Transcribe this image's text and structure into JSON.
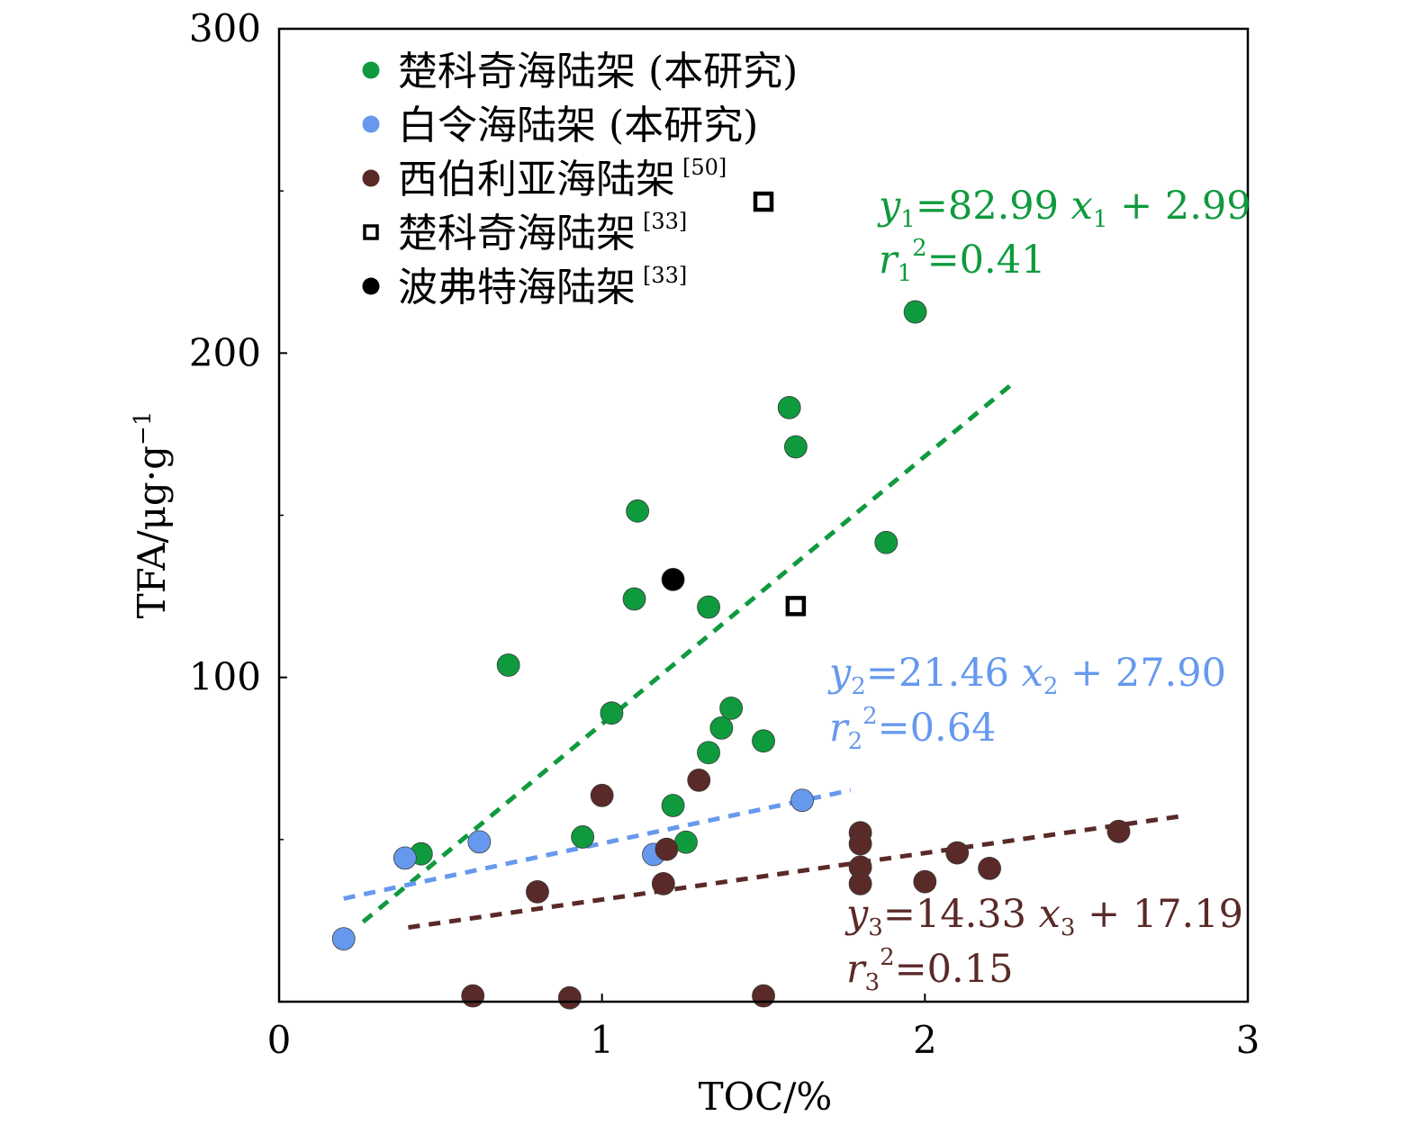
{
  "chart_data": {
    "type": "scatter",
    "xlabel": "TOC/%",
    "ylabel": "TFA/μg·g",
    "ylabel_superscript": "−1",
    "xlim": [
      0,
      3
    ],
    "ylim": [
      0,
      300
    ],
    "xticks": [
      "0",
      "1",
      "2",
      "3"
    ],
    "yticks": [
      "100",
      "200",
      "300"
    ],
    "colors": {
      "green": "#0f9a3e",
      "blue": "#6699ee",
      "brown": "#5a2a28",
      "black": "#000000"
    },
    "legend": [
      {
        "text": "楚科奇海陆架 (本研究)",
        "ref": "",
        "marker": "circle",
        "color": "#0f9a3e"
      },
      {
        "text": "白令海陆架 (本研究)",
        "ref": "",
        "marker": "circle",
        "color": "#6699ee"
      },
      {
        "text": "西伯利亚海陆架",
        "ref": "[50]",
        "marker": "circle",
        "color": "#5a2a28"
      },
      {
        "text": "楚科奇海陆架",
        "ref": "[33]",
        "marker": "square-open",
        "color": "#000000"
      },
      {
        "text": "波弗特海陆架",
        "ref": "[33]",
        "marker": "circle",
        "color": "#000000"
      }
    ],
    "series": [
      {
        "color": "#0f9a3e",
        "marker": "circle",
        "points": [
          [
            0.44,
            45.6
          ],
          [
            0.71,
            103.8
          ],
          [
            0.94,
            50.8
          ],
          [
            1.03,
            89.0
          ],
          [
            1.1,
            124.2
          ],
          [
            1.11,
            151.3
          ],
          [
            1.22,
            60.5
          ],
          [
            1.26,
            49.2
          ],
          [
            1.33,
            76.8
          ],
          [
            1.33,
            121.7
          ],
          [
            1.37,
            84.4
          ],
          [
            1.4,
            90.5
          ],
          [
            1.5,
            80.4
          ],
          [
            1.58,
            183.2
          ],
          [
            1.6,
            171.1
          ],
          [
            1.88,
            141.6
          ],
          [
            1.97,
            212.7
          ]
        ],
        "fit": {
          "x": [
            0.26,
            2.28
          ],
          "y": [
            24.6,
            191.3
          ]
        }
      },
      {
        "color": "#6699ee",
        "marker": "circle",
        "points": [
          [
            0.2,
            19.4
          ],
          [
            0.39,
            44.3
          ],
          [
            0.62,
            49.3
          ],
          [
            1.16,
            45.4
          ],
          [
            1.62,
            62.1
          ]
        ],
        "fit": {
          "x": [
            0.2,
            1.77
          ],
          "y": [
            31.8,
            65.2
          ]
        }
      },
      {
        "color": "#5a2a28",
        "marker": "circle",
        "points": [
          [
            0.6,
            1.8
          ],
          [
            0.8,
            33.9
          ],
          [
            0.9,
            1.2
          ],
          [
            1.0,
            63.6
          ],
          [
            1.19,
            36.4
          ],
          [
            1.2,
            47.0
          ],
          [
            1.3,
            68.3
          ],
          [
            1.5,
            1.8
          ],
          [
            1.8,
            52.1
          ],
          [
            1.8,
            48.7
          ],
          [
            1.8,
            41.5
          ],
          [
            1.8,
            36.4
          ],
          [
            2.0,
            37.0
          ],
          [
            2.1,
            45.9
          ],
          [
            2.2,
            41.1
          ],
          [
            2.6,
            52.5
          ]
        ],
        "fit": {
          "x": [
            0.4,
            2.8
          ],
          "y": [
            22.9,
            57.3
          ]
        }
      },
      {
        "color": "#000000",
        "marker": "square-open",
        "points": [
          [
            1.5,
            246.7
          ],
          [
            1.6,
            122.0
          ]
        ]
      },
      {
        "color": "#000000",
        "marker": "circle",
        "points": [
          [
            1.22,
            130.2
          ]
        ]
      }
    ],
    "equations": [
      {
        "y": "y",
        "ysub": "1",
        "eq1": "=82.99",
        "x": "x",
        "xsub": "1",
        "eq2": "+ 2.99",
        "r": "r",
        "rsub": "1",
        "rsup": "2",
        "req": "=0.41",
        "color": "#0f9a3e"
      },
      {
        "y": "y",
        "ysub": "2",
        "eq1": "=21.46",
        "x": "x",
        "xsub": "2",
        "eq2": "+ 27.90",
        "r": "r",
        "rsub": "2",
        "rsup": "2",
        "req": "=0.64",
        "color": "#6699ee"
      },
      {
        "y": "y",
        "ysub": "3",
        "eq1": "=14.33",
        "x": "x",
        "xsub": "3",
        "eq2": "+ 17.19",
        "r": "r",
        "rsub": "3",
        "rsup": "2",
        "req": "=0.15",
        "color": "#5a2a28"
      }
    ]
  }
}
